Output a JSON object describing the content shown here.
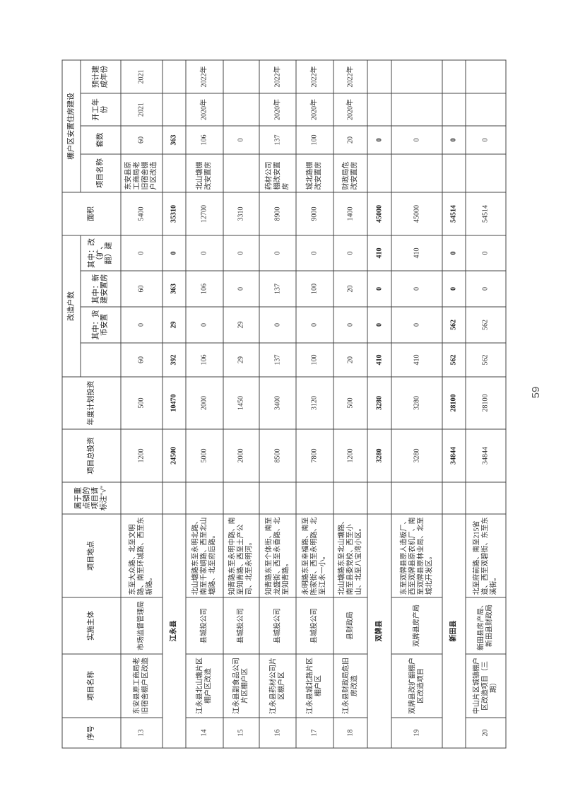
{
  "header": {
    "seq": "序号",
    "project_name": "项目名称",
    "implementer": "实施主体",
    "location": "项目地点",
    "key_town": "属于重点镇的项目请标注\"√\"",
    "total_investment": "项目总投资",
    "annual_investment": "年度计划投资",
    "households_group": "改造户数",
    "hh_total": "",
    "hh_monetary": "其中：货币安置",
    "hh_new": "其中：新建安置房",
    "hh_rebuild": "其中：改（扩、翻）建",
    "area": "面积",
    "housing_group": "棚户区安置住房建设",
    "h_name": "项目名称",
    "h_units": "套数",
    "h_start": "开工年份",
    "h_finish": "预计建成年份"
  },
  "rows": [
    {
      "type": "item",
      "seq": "13",
      "name": "东安县原工商局老旧宿舍棚户区改造",
      "implementer": "市场监督管理局",
      "location": "东至大众路、北至文明路、南至环城路、西至东新路。",
      "key_town": "",
      "total": "1200",
      "annual": "500",
      "hh_total": "60",
      "hh_monetary": "0",
      "hh_new": "60",
      "hh_rebuild": "0",
      "area": "5400",
      "h_name": "东安县原工商局老旧宿舍棚户区改造",
      "h_units": "60",
      "h_start": "2021",
      "h_finish": "2021"
    },
    {
      "type": "sub",
      "label": "江永县",
      "key_town": "",
      "total": "24500",
      "annual": "10470",
      "hh_total": "392",
      "hh_monetary": "29",
      "hh_new": "363",
      "hh_rebuild": "0",
      "area": "35310",
      "h_name": "",
      "h_units": "363",
      "h_start": "",
      "h_finish": ""
    },
    {
      "type": "item",
      "seq": "14",
      "name": "江永县北山塘片区棚户区改造",
      "implementer": "县城投公司",
      "location": "北山塘路东至永明北路、南至千家峒路、西至北山塘路、北至府后路。",
      "key_town": "",
      "total": "5000",
      "annual": "2000",
      "hh_total": "106",
      "hh_monetary": "0",
      "hh_new": "106",
      "hh_rebuild": "0",
      "area": "12700",
      "h_name": "北山塘棚改安置房",
      "h_units": "106",
      "h_start": "2020年",
      "h_finish": "2022年"
    },
    {
      "type": "item",
      "seq": "15",
      "name": "江永县副食品公司片区棚户区",
      "implementer": "县城投公司",
      "location": "知青路东至永明中路、南至知青路、西至土产公司、北至永明河。",
      "key_town": "",
      "total": "2000",
      "annual": "1450",
      "hh_total": "29",
      "hh_monetary": "29",
      "hh_new": "0",
      "hh_rebuild": "0",
      "area": "3310",
      "h_name": "",
      "h_units": "0",
      "h_start": "",
      "h_finish": ""
    },
    {
      "type": "item",
      "seq": "16",
      "name": "江永县药材公司片区棚户区",
      "implementer": "县城投公司",
      "location": "知青路东至个体街、南至龙盛街、西至永香路、北至知青路。",
      "key_town": "",
      "total": "8500",
      "annual": "3400",
      "hh_total": "137",
      "hh_monetary": "0",
      "hh_new": "137",
      "hh_rebuild": "0",
      "area": "8900",
      "h_name": "药材公司棚改安置房",
      "h_units": "137",
      "h_start": "2020年",
      "h_finish": "2022年"
    },
    {
      "type": "item",
      "seq": "17",
      "name": "江永县城北路片区棚户区",
      "implementer": "县城投公司",
      "location": "永明路东至幸福路、南至陈家街、西至永明路、北至江永一小。",
      "key_town": "",
      "total": "7800",
      "annual": "3120",
      "hh_total": "100",
      "hh_monetary": "0",
      "hh_new": "100",
      "hh_rebuild": "0",
      "area": "9000",
      "h_name": "城北路棚改安置房",
      "h_units": "100",
      "h_start": "2020年",
      "h_finish": "2022年"
    },
    {
      "type": "item",
      "seq": "18",
      "name": "江永县财政局危旧房改造",
      "implementer": "县财政局",
      "location": "北山塘路东至北山塘路、南至县委党校、西至小山、北至八宝湾小区。",
      "key_town": "",
      "total": "1200",
      "annual": "500",
      "hh_total": "20",
      "hh_monetary": "0",
      "hh_new": "20",
      "hh_rebuild": "0",
      "area": "1400",
      "h_name": "财政局危改安置房",
      "h_units": "20",
      "h_start": "2020年",
      "h_finish": "2022年"
    },
    {
      "type": "sub",
      "label": "双牌县",
      "key_town": "",
      "total": "3280",
      "annual": "3280",
      "hh_total": "410",
      "hh_monetary": "0",
      "hh_new": "0",
      "hh_rebuild": "410",
      "area": "45000",
      "h_name": "",
      "h_units": "0",
      "h_start": "",
      "h_finish": ""
    },
    {
      "type": "item",
      "seq": "19",
      "name": "双牌县改扩翻棚户区改造项目",
      "implementer": "双牌县房产局",
      "location": "东至双牌县原人造板厂、西至双牌县原农机厂、南至双牌县原林业局、北至城北开发区。",
      "key_town": "",
      "total": "3280",
      "annual": "3280",
      "hh_total": "410",
      "hh_monetary": "0",
      "hh_new": "0",
      "hh_rebuild": "410",
      "area": "45000",
      "h_name": "",
      "h_units": "0",
      "h_start": "",
      "h_finish": ""
    },
    {
      "type": "sub",
      "label": "新田县",
      "key_town": "",
      "total": "34844",
      "annual": "28100",
      "hh_total": "562",
      "hh_monetary": "562",
      "hh_new": "0",
      "hh_rebuild": "0",
      "area": "54514",
      "h_name": "",
      "h_units": "0",
      "h_start": "",
      "h_finish": ""
    },
    {
      "type": "item",
      "seq": "20",
      "name": "中山片区城镇棚户区改造项目（三期）",
      "implementer": "新田县房产局、新田县财政局",
      "location": "北至府前路、南至215省道、西至双碧街、东至东溪街。",
      "key_town": "",
      "total": "34844",
      "annual": "28100",
      "hh_total": "562",
      "hh_monetary": "562",
      "hh_new": "0",
      "hh_rebuild": "0",
      "area": "54514",
      "h_name": "",
      "h_units": "0",
      "h_start": "",
      "h_finish": ""
    }
  ],
  "page_number": "59"
}
